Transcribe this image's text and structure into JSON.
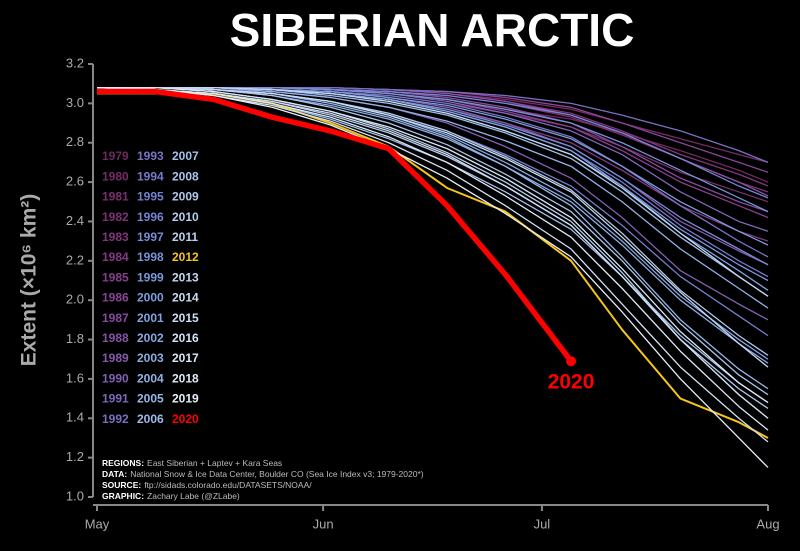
{
  "chart_data": {
    "type": "line",
    "title": "SIBERIAN ARCTIC",
    "y_label": "Extent (×10⁶ km²)",
    "x": [
      0,
      8,
      16,
      24,
      32,
      40,
      48,
      56,
      65,
      72,
      80,
      88,
      92
    ],
    "xlim": [
      0,
      92
    ],
    "xticks": [
      {
        "value": 0,
        "label": "May"
      },
      {
        "value": 31,
        "label": "Jun"
      },
      {
        "value": 61,
        "label": "Jul"
      },
      {
        "value": 92,
        "label": "Aug"
      }
    ],
    "ylim": [
      1.0,
      3.2
    ],
    "yticks": [
      {
        "value": 1.0,
        "label": "1.0"
      },
      1.2,
      1.4,
      1.6,
      1.8,
      {
        "value": 2.0,
        "label": "2.0"
      },
      2.2,
      2.4,
      2.6,
      2.8,
      {
        "value": 3.0,
        "label": "3.0"
      },
      3.2
    ],
    "grid": false,
    "legend": "left",
    "notes": [
      {
        "label": "REGIONS:",
        "text": "East Siberian + Laptev + Kara Seas"
      },
      {
        "label": "DATA:",
        "text": "National Snow & Ice Data Center, Boulder CO (Sea Ice Index v3; 1979-2020*)"
      },
      {
        "label": "SOURCE:",
        "text": "ftp://sidads.colorado.edu/DATASETS/NOAA/"
      },
      {
        "label": "GRAPHIC:",
        "text": "Zachary Labe (@ZLabe)"
      }
    ],
    "series": [
      {
        "name": "1979",
        "color": "#6e2a5e",
        "values": [
          3.08,
          3.08,
          3.08,
          3.08,
          3.07,
          3.05,
          3.02,
          2.97,
          2.92,
          2.85,
          2.76,
          2.66,
          2.6
        ]
      },
      {
        "name": "1980",
        "color": "#742c66",
        "values": [
          3.08,
          3.08,
          3.08,
          3.08,
          3.08,
          3.07,
          3.05,
          3.02,
          2.97,
          2.9,
          2.82,
          2.74,
          2.7
        ]
      },
      {
        "name": "1981",
        "color": "#7a2f6e",
        "values": [
          3.08,
          3.08,
          3.08,
          3.07,
          3.06,
          3.04,
          3.0,
          2.95,
          2.88,
          2.78,
          2.65,
          2.55,
          2.5
        ]
      },
      {
        "name": "1982",
        "color": "#7e3276",
        "values": [
          3.08,
          3.08,
          3.08,
          3.08,
          3.07,
          3.06,
          3.04,
          3.0,
          2.93,
          2.84,
          2.72,
          2.6,
          2.55
        ]
      },
      {
        "name": "1983",
        "color": "#82367e",
        "values": [
          3.08,
          3.08,
          3.08,
          3.08,
          3.08,
          3.07,
          3.05,
          3.01,
          2.95,
          2.86,
          2.74,
          2.64,
          2.58
        ]
      },
      {
        "name": "1984",
        "color": "#853a86",
        "values": [
          3.08,
          3.08,
          3.08,
          3.07,
          3.05,
          3.02,
          2.97,
          2.9,
          2.8,
          2.66,
          2.48,
          2.35,
          2.3
        ]
      },
      {
        "name": "1985",
        "color": "#873f8e",
        "values": [
          3.08,
          3.08,
          3.08,
          3.08,
          3.07,
          3.05,
          3.02,
          2.96,
          2.88,
          2.76,
          2.6,
          2.48,
          2.42
        ]
      },
      {
        "name": "1986",
        "color": "#884596",
        "values": [
          3.08,
          3.08,
          3.08,
          3.08,
          3.08,
          3.07,
          3.06,
          3.03,
          2.98,
          2.9,
          2.8,
          2.7,
          2.65
        ]
      },
      {
        "name": "1987",
        "color": "#884b9e",
        "values": [
          3.08,
          3.08,
          3.08,
          3.08,
          3.07,
          3.06,
          3.03,
          2.98,
          2.9,
          2.78,
          2.62,
          2.5,
          2.45
        ]
      },
      {
        "name": "1988",
        "color": "#8752a6",
        "values": [
          3.08,
          3.08,
          3.08,
          3.08,
          3.08,
          3.07,
          3.05,
          3.01,
          2.94,
          2.85,
          2.72,
          2.6,
          2.53
        ]
      },
      {
        "name": "1989",
        "color": "#8559ad",
        "values": [
          3.08,
          3.08,
          3.08,
          3.07,
          3.06,
          3.03,
          2.98,
          2.9,
          2.78,
          2.62,
          2.4,
          2.25,
          2.18
        ]
      },
      {
        "name": "1990",
        "color": "#8260b4",
        "values": [
          3.08,
          3.08,
          3.07,
          3.06,
          3.03,
          2.98,
          2.9,
          2.78,
          2.62,
          2.42,
          2.15,
          1.98,
          1.9
        ]
      },
      {
        "name": "1991",
        "color": "#7f67ba",
        "values": [
          3.08,
          3.08,
          3.08,
          3.08,
          3.07,
          3.05,
          3.01,
          2.95,
          2.86,
          2.74,
          2.55,
          2.4,
          2.35
        ]
      },
      {
        "name": "1992",
        "color": "#7b6ec0",
        "values": [
          3.08,
          3.08,
          3.08,
          3.08,
          3.08,
          3.07,
          3.06,
          3.04,
          3.0,
          2.94,
          2.86,
          2.76,
          2.7
        ]
      },
      {
        "name": "1993",
        "color": "#7874c5",
        "values": [
          3.08,
          3.08,
          3.08,
          3.07,
          3.06,
          3.04,
          3.0,
          2.93,
          2.83,
          2.68,
          2.48,
          2.3,
          2.22
        ]
      },
      {
        "name": "1994",
        "color": "#767aca",
        "values": [
          3.08,
          3.08,
          3.08,
          3.07,
          3.05,
          3.02,
          2.96,
          2.88,
          2.76,
          2.6,
          2.38,
          2.2,
          2.12
        ]
      },
      {
        "name": "1995",
        "color": "#7580ce",
        "values": [
          3.08,
          3.08,
          3.07,
          3.05,
          3.01,
          2.95,
          2.86,
          2.74,
          2.58,
          2.38,
          2.12,
          1.92,
          1.82
        ]
      },
      {
        "name": "1996",
        "color": "#7586d2",
        "values": [
          3.08,
          3.08,
          3.08,
          3.08,
          3.07,
          3.06,
          3.04,
          3.0,
          2.94,
          2.85,
          2.72,
          2.58,
          2.52
        ]
      },
      {
        "name": "1997",
        "color": "#768cd5",
        "values": [
          3.08,
          3.08,
          3.08,
          3.07,
          3.05,
          3.02,
          2.97,
          2.89,
          2.78,
          2.62,
          2.42,
          2.26,
          2.18
        ]
      },
      {
        "name": "1998",
        "color": "#7892d8",
        "values": [
          3.08,
          3.08,
          3.08,
          3.08,
          3.07,
          3.05,
          3.02,
          2.97,
          2.9,
          2.8,
          2.66,
          2.52,
          2.45
        ]
      },
      {
        "name": "1999",
        "color": "#7b98db",
        "values": [
          3.08,
          3.08,
          3.08,
          3.07,
          3.05,
          3.01,
          2.95,
          2.86,
          2.74,
          2.58,
          2.36,
          2.18,
          2.1
        ]
      },
      {
        "name": "2000",
        "color": "#7e9dde",
        "values": [
          3.08,
          3.08,
          3.08,
          3.07,
          3.06,
          3.03,
          2.99,
          2.92,
          2.82,
          2.68,
          2.5,
          2.35,
          2.28
        ]
      },
      {
        "name": "2001",
        "color": "#82a3e0",
        "values": [
          3.08,
          3.08,
          3.08,
          3.07,
          3.05,
          3.02,
          2.96,
          2.88,
          2.76,
          2.58,
          2.34,
          2.15,
          2.05
        ]
      },
      {
        "name": "2002",
        "color": "#87a8e2",
        "values": [
          3.08,
          3.08,
          3.07,
          3.05,
          3.01,
          2.94,
          2.84,
          2.7,
          2.52,
          2.3,
          2.02,
          1.8,
          1.7
        ]
      },
      {
        "name": "2003",
        "color": "#8cade4",
        "values": [
          3.08,
          3.08,
          3.07,
          3.04,
          2.99,
          2.92,
          2.82,
          2.68,
          2.5,
          2.28,
          2.0,
          1.78,
          1.68
        ]
      },
      {
        "name": "2004",
        "color": "#92b2e6",
        "values": [
          3.08,
          3.08,
          3.08,
          3.06,
          3.03,
          2.98,
          2.91,
          2.81,
          2.68,
          2.5,
          2.26,
          2.06,
          1.96
        ]
      },
      {
        "name": "2005",
        "color": "#98b7e8",
        "values": [
          3.08,
          3.08,
          3.07,
          3.05,
          3.0,
          2.93,
          2.83,
          2.68,
          2.48,
          2.22,
          1.9,
          1.65,
          1.55
        ]
      },
      {
        "name": "2006",
        "color": "#9ebce9",
        "values": [
          3.08,
          3.08,
          3.08,
          3.07,
          3.04,
          3.0,
          2.94,
          2.85,
          2.72,
          2.55,
          2.32,
          2.12,
          2.02
        ]
      },
      {
        "name": "2007",
        "color": "#a4c0ea",
        "values": [
          3.08,
          3.07,
          3.05,
          3.0,
          2.92,
          2.82,
          2.7,
          2.55,
          2.36,
          2.12,
          1.82,
          1.58,
          1.48
        ]
      },
      {
        "name": "2008",
        "color": "#a9c4eb",
        "values": [
          3.08,
          3.08,
          3.07,
          3.04,
          2.98,
          2.9,
          2.79,
          2.64,
          2.45,
          2.2,
          1.88,
          1.62,
          1.52
        ]
      },
      {
        "name": "2009",
        "color": "#afc8ec",
        "values": [
          3.08,
          3.08,
          3.07,
          3.05,
          3.01,
          2.95,
          2.86,
          2.73,
          2.56,
          2.34,
          2.05,
          1.82,
          1.72
        ]
      },
      {
        "name": "2010",
        "color": "#b4ccee",
        "values": [
          3.08,
          3.07,
          3.05,
          3.01,
          2.94,
          2.85,
          2.73,
          2.58,
          2.38,
          2.12,
          1.8,
          1.55,
          1.45
        ]
      },
      {
        "name": "2011",
        "color": "#bad0ef",
        "values": [
          3.08,
          3.08,
          3.06,
          3.02,
          2.96,
          2.87,
          2.75,
          2.6,
          2.4,
          2.14,
          1.8,
          1.52,
          1.4
        ]
      },
      {
        "name": "2012",
        "color": "#f5c518",
        "values": [
          3.05,
          3.05,
          3.05,
          3.0,
          2.9,
          2.78,
          2.57,
          2.45,
          2.2,
          1.85,
          1.5,
          1.38,
          1.3
        ]
      },
      {
        "name": "2013",
        "color": "#c4d7f1",
        "values": [
          3.08,
          3.08,
          3.08,
          3.07,
          3.05,
          3.01,
          2.95,
          2.86,
          2.74,
          2.57,
          2.34,
          2.12,
          2.02
        ]
      },
      {
        "name": "2014",
        "color": "#c9dbf2",
        "values": [
          3.08,
          3.08,
          3.07,
          3.05,
          3.01,
          2.94,
          2.85,
          2.72,
          2.55,
          2.32,
          2.04,
          1.78,
          1.66
        ]
      },
      {
        "name": "2015",
        "color": "#cedef3",
        "values": [
          3.08,
          3.07,
          3.05,
          3.01,
          2.95,
          2.86,
          2.74,
          2.58,
          2.38,
          2.12,
          1.8,
          1.52,
          1.4
        ]
      },
      {
        "name": "2016",
        "color": "#d3e2f4",
        "values": [
          3.08,
          3.07,
          3.04,
          2.99,
          2.91,
          2.8,
          2.66,
          2.48,
          2.26,
          1.98,
          1.66,
          1.4,
          1.28
        ]
      },
      {
        "name": "2017",
        "color": "#d9e6f6",
        "values": [
          3.08,
          3.08,
          3.06,
          3.02,
          2.96,
          2.88,
          2.77,
          2.62,
          2.42,
          2.16,
          1.84,
          1.58,
          1.48
        ]
      },
      {
        "name": "2018",
        "color": "#dee9f7",
        "values": [
          3.08,
          3.07,
          3.05,
          3.0,
          2.93,
          2.83,
          2.7,
          2.53,
          2.32,
          2.06,
          1.74,
          1.46,
          1.34
        ]
      },
      {
        "name": "2019",
        "color": "#e8eff9",
        "values": [
          3.08,
          3.07,
          3.04,
          2.98,
          2.89,
          2.77,
          2.62,
          2.44,
          2.22,
          1.94,
          1.6,
          1.3,
          1.15
        ]
      },
      {
        "name": "2020",
        "color": "#ff0000",
        "values": [
          3.06,
          3.06,
          3.02,
          2.93,
          2.86,
          2.77,
          2.48,
          2.13,
          1.69,
          null,
          null,
          null,
          null
        ]
      }
    ]
  }
}
